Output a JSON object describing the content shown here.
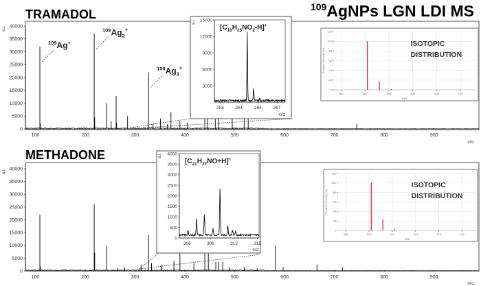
{
  "figure_title": {
    "sup": "109",
    "text": "AgNPs LGN LDI MS"
  },
  "colors": {
    "spectrum": "#111111",
    "frame": "#888888",
    "isotope_bar": "#e03030",
    "grid": "#dddddd"
  },
  "chart_data": [
    {
      "id": "tramadol-full",
      "type": "bar",
      "title": "TRAMADOL",
      "xlabel": "m/z",
      "ylabel": "a.i.",
      "xlim": [
        80,
        990
      ],
      "ylim": [
        0,
        40000
      ],
      "xticks": [
        100,
        200,
        300,
        400,
        500,
        600,
        700,
        800,
        900
      ],
      "yticks": [
        0,
        5000,
        10000,
        15000,
        20000,
        25000,
        30000,
        35000,
        40000
      ],
      "peaks": [
        [
          109,
          32000
        ],
        [
          110,
          2000
        ],
        [
          218,
          37000
        ],
        [
          219,
          4500
        ],
        [
          243,
          10000
        ],
        [
          252,
          3000
        ],
        [
          262,
          12800
        ],
        [
          263,
          2500
        ],
        [
          285,
          5000
        ],
        [
          327,
          22000
        ],
        [
          336,
          2000
        ],
        [
          351,
          4000
        ],
        [
          365,
          1800
        ],
        [
          372,
          6500
        ],
        [
          390,
          3000
        ],
        [
          405,
          2500
        ],
        [
          440,
          6000
        ],
        [
          446,
          7000
        ],
        [
          461,
          5000
        ],
        [
          467,
          5000
        ],
        [
          495,
          5000
        ],
        [
          519,
          5000
        ],
        [
          527,
          4500
        ],
        [
          745,
          2000
        ]
      ],
      "annotations": [
        {
          "sup": "109",
          "base": "Ag",
          "sub": "",
          "charge": "+",
          "mz": 109
        },
        {
          "sup": "109",
          "base": "Ag",
          "sub": "2",
          "charge": "+",
          "mz": 218
        },
        {
          "sup": "109",
          "base": "Ag",
          "sub": "3",
          "charge": "+",
          "mz": 327
        }
      ]
    },
    {
      "id": "tramadol-zoom",
      "type": "line",
      "label": {
        "pre": "[C",
        "s1": "16",
        "m1": "H",
        "s2": "25",
        "m2": "NO",
        "s3": "2",
        "post": "-H]",
        "charge": "+"
      },
      "xlabel": "m/z",
      "ylabel": "a.i.",
      "xlim": [
        257.1,
        268.3
      ],
      "ylim": [
        0,
        15000
      ],
      "xticks": [
        258,
        261,
        264,
        267
      ],
      "yticks": [
        3000,
        6000,
        9000,
        12000,
        15000
      ],
      "peaks": [
        [
          262.3,
          12700
        ],
        [
          263.3,
          2300
        ],
        [
          264.3,
          500
        ]
      ]
    },
    {
      "id": "tramadol-isotopic",
      "type": "bar",
      "label": [
        "ISOTOPIC",
        "DISTRIBUTION"
      ],
      "xlabel": "m/z",
      "ylabel": "Relative intensity (%)",
      "xlim": [
        259.4,
        271.2
      ],
      "ylim": [
        0,
        120
      ],
      "xticks": [
        260,
        262,
        264,
        266,
        268,
        270
      ],
      "yticks": [
        0,
        20,
        40,
        60,
        80,
        100,
        120
      ],
      "grid": true,
      "peaks": [
        [
          262.2,
          100
        ],
        [
          263.2,
          17
        ],
        [
          264.2,
          1.5
        ]
      ]
    },
    {
      "id": "methadone-full",
      "type": "bar",
      "title": "METHADONE",
      "xlabel": "m/z",
      "ylabel": "a.i.",
      "xlim": [
        80,
        990
      ],
      "ylim": [
        0,
        40000
      ],
      "xticks": [
        100,
        200,
        300,
        400,
        500,
        600,
        700,
        800,
        900
      ],
      "yticks": [
        0,
        5000,
        10000,
        15000,
        20000,
        25000,
        30000,
        35000,
        40000
      ],
      "peaks": [
        [
          109,
          22000
        ],
        [
          110,
          1800
        ],
        [
          218,
          26000
        ],
        [
          219,
          7000
        ],
        [
          243,
          9500
        ],
        [
          265,
          1000
        ],
        [
          279,
          1500
        ],
        [
          312,
          2500
        ],
        [
          327,
          14000
        ],
        [
          333,
          3000
        ],
        [
          353,
          2500
        ],
        [
          378,
          4000
        ],
        [
          390,
          7000
        ],
        [
          418,
          3000
        ],
        [
          440,
          8000
        ],
        [
          447,
          9000
        ],
        [
          462,
          3500
        ],
        [
          467,
          3500
        ],
        [
          476,
          3500
        ],
        [
          490,
          1500
        ],
        [
          519,
          1500
        ],
        [
          545,
          1000
        ],
        [
          582,
          10000
        ],
        [
          597,
          1500
        ],
        [
          665,
          2500
        ],
        [
          716,
          1500
        ]
      ]
    },
    {
      "id": "methadone-zoom",
      "type": "line",
      "label": {
        "pre": "[C",
        "s1": "21",
        "m1": "H",
        "s2": "27",
        "m2": "NO",
        "s3": "",
        "post": "+H]",
        "charge": "+"
      },
      "xlabel": "m/z",
      "ylabel": "a.i.",
      "xlim": [
        305.0,
        315.2
      ],
      "ylim": [
        0,
        4000
      ],
      "xticks": [
        306,
        309,
        312,
        315
      ],
      "yticks": [
        0,
        500,
        1000,
        1500,
        2000,
        2500,
        3000,
        3500,
        4000
      ],
      "peaks": [
        [
          306.1,
          250
        ],
        [
          307.2,
          800
        ],
        [
          308.2,
          1000
        ],
        [
          309.3,
          300
        ],
        [
          310.2,
          2250
        ],
        [
          311.2,
          450
        ],
        [
          311.8,
          250
        ],
        [
          312.2,
          200
        ]
      ]
    },
    {
      "id": "methadone-isotopic",
      "type": "bar",
      "label": [
        "ISOTOPIC",
        "DISTRIBUTION"
      ],
      "xlabel": "m/z",
      "ylabel": "Relative intensity (%)",
      "xlim": [
        307.35,
        319.2
      ],
      "ylim": [
        0,
        120
      ],
      "xticks": [
        308,
        310,
        312,
        314,
        316,
        318
      ],
      "yticks": [
        0,
        20,
        40,
        60,
        80,
        100,
        120
      ],
      "grid": true,
      "peaks": [
        [
          310.2,
          100
        ],
        [
          311.2,
          23
        ],
        [
          312.2,
          2.5
        ]
      ]
    }
  ]
}
